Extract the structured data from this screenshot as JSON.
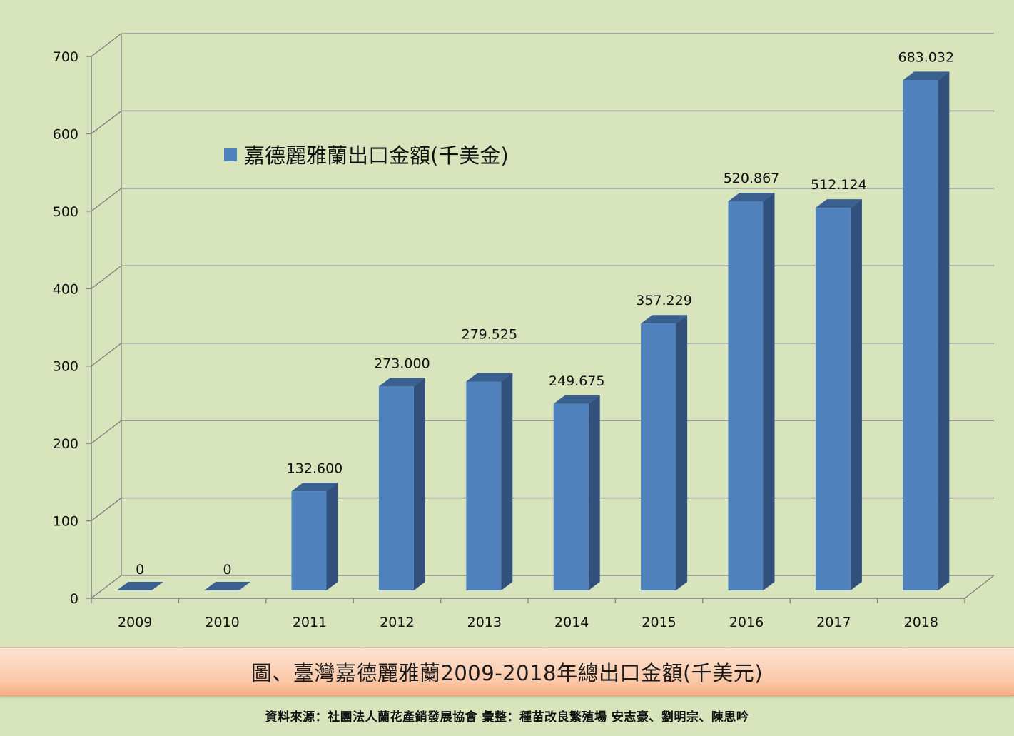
{
  "chart_data": {
    "type": "bar",
    "categories": [
      "2009",
      "2010",
      "2011",
      "2012",
      "2013",
      "2014",
      "2015",
      "2016",
      "2017",
      "2018"
    ],
    "series": [
      {
        "name": "嘉德麗雅蘭出口金額(千美金)",
        "values": [
          0,
          0,
          132.6,
          273.0,
          279.525,
          249.675,
          357.229,
          520.867,
          512.124,
          683.032
        ],
        "labels": [
          "0",
          "0",
          "132.600",
          "273.000",
          "279.525",
          "249.675",
          "357.229",
          "520.867",
          "512.124",
          "683.032"
        ],
        "color": "#4f81bd"
      }
    ],
    "yticks": [
      0,
      100,
      200,
      300,
      400,
      500,
      600,
      700
    ],
    "ylim": [
      0,
      700
    ],
    "grid": true,
    "legend": "top-left",
    "style": "3d"
  },
  "caption": "圖、臺灣嘉德麗雅蘭2009-2018年總出口金額(千美元)",
  "source": "資料來源：社團法人蘭花產銷發展協會  彙整：種苗改良繁殖場  安志豪、劉明宗、陳思吟",
  "colors": {
    "background": "#d8e4bc",
    "bar_front": "#4f81bd",
    "bar_side": "#31507c",
    "bar_top": "#3a6090",
    "grid": "#7f7f7f"
  }
}
